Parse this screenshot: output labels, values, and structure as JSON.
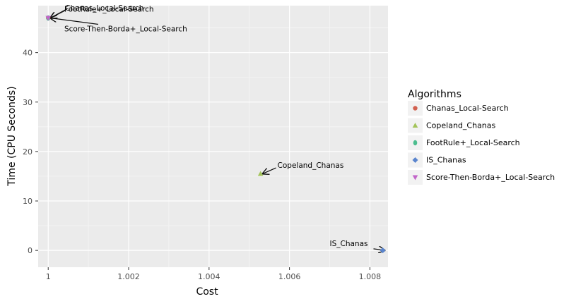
{
  "chart_data": {
    "type": "scatter",
    "title": "",
    "xlabel": "Cost",
    "ylabel": "Time (CPU Seconds)",
    "xlim": [
      0.99975,
      1.00845
    ],
    "ylim": [
      -3.4,
      49.5
    ],
    "x_ticks": [
      1,
      1.002,
      1.004,
      1.006,
      1.008
    ],
    "x_tick_labels": [
      "1",
      "1.002",
      "1.004",
      "1.006",
      "1.008"
    ],
    "y_ticks": [
      0,
      10,
      20,
      30,
      40
    ],
    "y_tick_labels": [
      "0",
      "10",
      "20",
      "30",
      "40"
    ],
    "grid": true,
    "legend": {
      "title": "Algorithms",
      "position": "right"
    },
    "series": [
      {
        "name": "Chanas_Local-Search",
        "color": "#D1604F",
        "marker": "circle",
        "points": [
          {
            "x": 1.0,
            "y": 47.0
          }
        ],
        "annotation": {
          "text": "Chanas_Local-Search",
          "arrow": true,
          "text_x": 1.00042,
          "text_y": 48.5
        }
      },
      {
        "name": "Copeland_Chanas",
        "color": "#A3C45A",
        "marker": "triangle-up",
        "points": [
          {
            "x": 1.00528,
            "y": 15.5
          }
        ],
        "annotation": {
          "text": "Copeland_Chanas",
          "arrow": true,
          "text_x": 1.0057,
          "text_y": 16.7
        }
      },
      {
        "name": "FootRule+_Local-Search",
        "color": "#4DBE8F",
        "marker": "ellipse",
        "points": [
          {
            "x": 1.0,
            "y": 47.0
          }
        ],
        "annotation": {
          "text": "FootRule+_Local-Search",
          "arrow": true,
          "text_x": 1.0004,
          "text_y": 48.3
        }
      },
      {
        "name": "IS_Chanas",
        "color": "#5A85CE",
        "marker": "diamond",
        "points": [
          {
            "x": 1.00832,
            "y": 0.0
          }
        ],
        "annotation": {
          "text": "IS_Chanas",
          "arrow": true,
          "text_x": 1.007,
          "text_y": 0.9
        }
      },
      {
        "name": "Score-Then-Borda+_Local-Search",
        "color": "#C266C9",
        "marker": "triangle-down",
        "points": [
          {
            "x": 1.0,
            "y": 47.0
          }
        ],
        "annotation": {
          "text": "Score-Then-Borda+_Local-Search",
          "arrow": true,
          "text_x": 1.0004,
          "text_y": 44.3
        }
      }
    ]
  }
}
